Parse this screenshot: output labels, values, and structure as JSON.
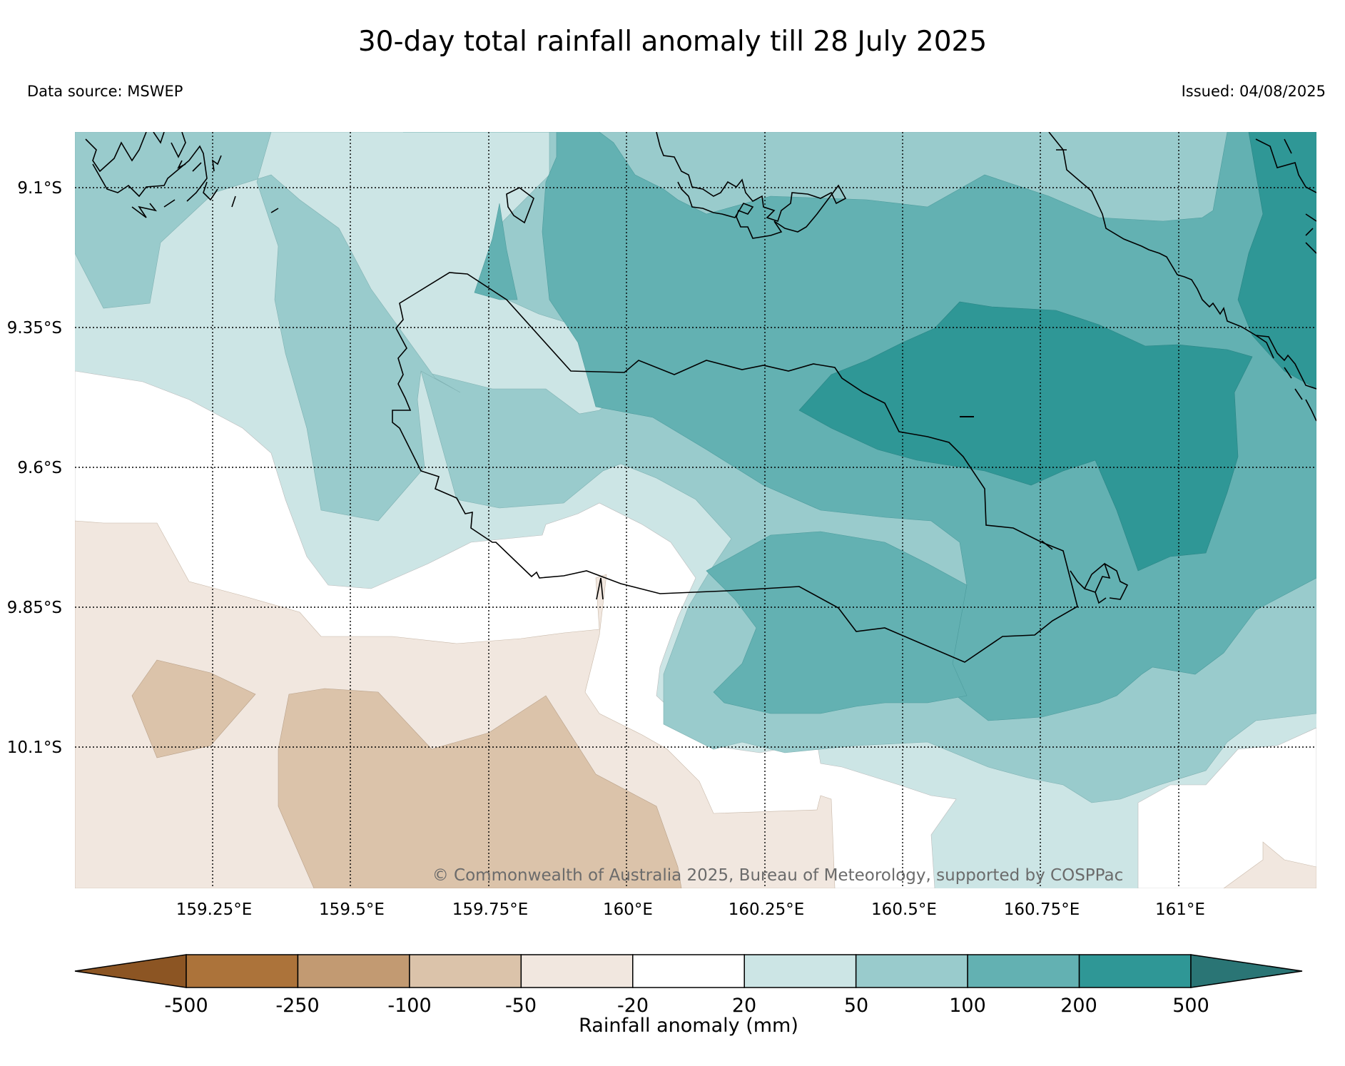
{
  "title": "30-day total rainfall anomaly till 28 July 2025",
  "data_source": "Data source: MSWEP",
  "issued": "Issued: 04/08/2025",
  "copyright": "© Commonwealth of Australia 2025, Bureau of Meteorology, supported by COSPPac",
  "lat_ticks": [
    "9.1°S",
    "9.35°S",
    "9.6°S",
    "9.85°S",
    "10.1°S"
  ],
  "lon_ticks": [
    "159.25°E",
    "159.5°E",
    "159.75°E",
    "160°E",
    "160.25°E",
    "160.5°E",
    "160.75°E",
    "161°E"
  ],
  "colorbar": {
    "label": "Rainfall anomaly (mm)",
    "tick_labels": [
      "-500",
      "-250",
      "-100",
      "-50",
      "-20",
      "20",
      "50",
      "100",
      "200",
      "500"
    ],
    "colors": [
      "#8c5523",
      "#ac733a",
      "#c29a72",
      "#dbc3aa",
      "#f1e7df",
      "#ffffff",
      "#cce5e5",
      "#99cbcc",
      "#63b1b2",
      "#2f9796",
      "#2a7575"
    ]
  },
  "legend_colors": {
    "ocean_land_background": "#ffffff",
    "coastline": "#000000",
    "gridline": "#000000"
  }
}
